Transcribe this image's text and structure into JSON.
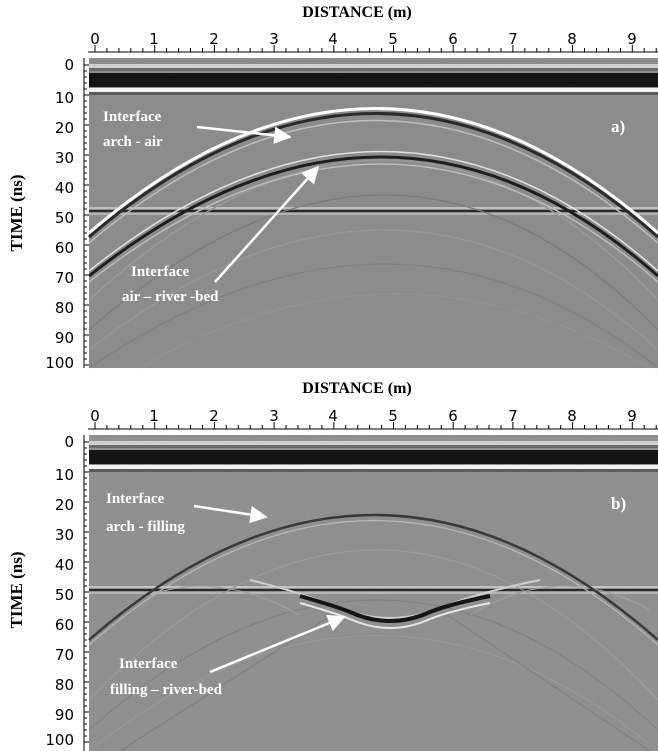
{
  "panels": [
    {
      "id": "a",
      "panel_label": "a)",
      "x_axis_title": "DISTANCE (m)",
      "y_axis_title": "TIME (ns)",
      "x_tick_labels": [
        "0",
        "1",
        "2",
        "3",
        "4",
        "5",
        "6",
        "7",
        "8",
        "9"
      ],
      "y_tick_labels": [
        "0",
        "10",
        "20",
        "30",
        "40",
        "50",
        "60",
        "70",
        "80",
        "90",
        "100"
      ],
      "annotations": [
        {
          "lines": [
            "Interface",
            "arch - air"
          ]
        },
        {
          "lines": [
            "Interface",
            "air – river -bed"
          ]
        }
      ]
    },
    {
      "id": "b",
      "panel_label": "b)",
      "x_axis_title": "DISTANCE (m)",
      "y_axis_title": "TIME (ns)",
      "x_tick_labels": [
        "0",
        "1",
        "2",
        "3",
        "4",
        "5",
        "6",
        "7",
        "8",
        "9"
      ],
      "y_tick_labels": [
        "0",
        "10",
        "20",
        "30",
        "40",
        "50",
        "60",
        "70",
        "80",
        "90",
        "100"
      ],
      "annotations": [
        {
          "lines": [
            "Interface",
            "arch - filling"
          ]
        },
        {
          "lines": [
            "Interface",
            "filling – river-bed"
          ]
        }
      ]
    }
  ]
}
